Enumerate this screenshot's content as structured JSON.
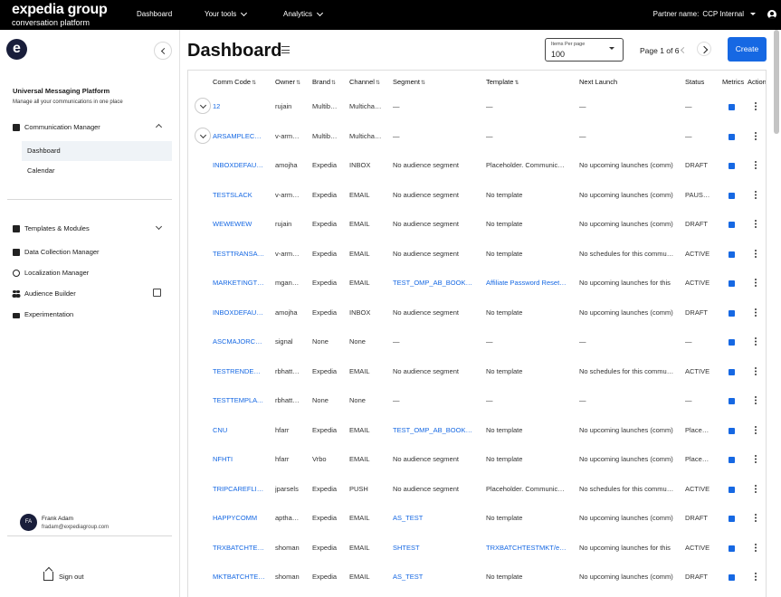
{
  "topbar": {
    "brand": "expedia group",
    "brand_sub": "conversation platform",
    "nav": [
      "Dashboard",
      "Your tools",
      "Analytics"
    ],
    "partner_label": "Partner name:",
    "partner_value": "CCP Internal"
  },
  "sidebar": {
    "logo_letter": "e",
    "title": "Universal Messaging Platform",
    "subtitle": "Manage all your communications in one place",
    "comm_manager": "Communication Manager",
    "sub_items": [
      "Dashboard",
      "Calendar"
    ],
    "templates": "Templates & Modules",
    "data_collection": "Data Collection Manager",
    "localization": "Localization Manager",
    "audience": "Audience Builder",
    "experimentation": "Experimentation",
    "user_initials": "FA",
    "user_name": "Frank Adam",
    "user_email": "fradam@expediagroup.com",
    "sign_out": "Sign out"
  },
  "main": {
    "title": "Dashboard",
    "items_per_page_label": "Items Per page",
    "items_per_page_value": "100",
    "page_info": "Page 1 of 6",
    "create_label": "Create"
  },
  "table": {
    "headers": {
      "code": "Comm Code",
      "owner": "Owner",
      "brand": "Brand",
      "channel": "Channel",
      "segment": "Segment",
      "template": "Template",
      "next": "Next Launch",
      "status": "Status",
      "metrics": "Metrics",
      "action": "Action"
    },
    "rows": [
      {
        "code": "12",
        "owner": "rujain",
        "brand": "Multibrand",
        "channel": "Multichannel",
        "segment": "—",
        "template": "—",
        "next": "—",
        "status": "—"
      },
      {
        "code": "ARSAMPLECOMM",
        "owner": "v-armaan",
        "brand": "Multibrand",
        "channel": "Multichannel",
        "segment": "—",
        "template": "—",
        "next": "—",
        "status": "—"
      },
      {
        "code": "INBOXDEFAULTCOMM",
        "owner": "amojha",
        "brand": "Expedia",
        "channel": "INBOX",
        "segment": "No audience segment",
        "template": "Placeholder. Communication",
        "next": "No upcoming launches (comm)",
        "status": "DRAFT"
      },
      {
        "code": "TESTSLACK",
        "owner": "v-armaan",
        "brand": "Expedia",
        "channel": "EMAIL",
        "segment": "No audience segment",
        "template": "No template",
        "next": "No upcoming launches (comm)",
        "status": "PAUSED"
      },
      {
        "code": "WEWEWEW",
        "owner": "rujain",
        "brand": "Expedia",
        "channel": "EMAIL",
        "segment": "No audience segment",
        "template": "No template",
        "next": "No upcoming launches (comm)",
        "status": "DRAFT"
      },
      {
        "code": "TESTTRANSACTIONAL",
        "owner": "v-armaan",
        "brand": "Expedia",
        "channel": "EMAIL",
        "segment": "No audience segment",
        "template": "No template",
        "next": "No schedules for this communication",
        "status": "ACTIVE"
      },
      {
        "code": "MARKETINGTEST",
        "owner": "mganesh",
        "brand": "Expedia",
        "channel": "EMAIL",
        "segment": "TEST_OMP_AB_BOOKING",
        "template": "Affiliate Password Reset Template",
        "next": "No upcoming launches for this",
        "status": "ACTIVE"
      },
      {
        "code": "INBOXDEFAULT1",
        "owner": "amojha",
        "brand": "Expedia",
        "channel": "INBOX",
        "segment": "No audience segment",
        "template": "No template",
        "next": "No upcoming launches (comm)",
        "status": "DRAFT"
      },
      {
        "code": "ASCMAJORCTEST",
        "owner": "signal",
        "brand": "None",
        "channel": "None",
        "segment": "—",
        "template": "—",
        "next": "—",
        "status": "—"
      },
      {
        "code": "TESTRENDERCOMM",
        "owner": "rbhattach",
        "brand": "Expedia",
        "channel": "EMAIL",
        "segment": "No audience segment",
        "template": "No template",
        "next": "No schedules for this communication",
        "status": "ACTIVE"
      },
      {
        "code": "TESTTEMPLATECOMM",
        "owner": "rbhattach",
        "brand": "None",
        "channel": "None",
        "segment": "—",
        "template": "—",
        "next": "—",
        "status": "—"
      },
      {
        "code": "CNU",
        "owner": "hfarr",
        "brand": "Expedia",
        "channel": "EMAIL",
        "segment": "TEST_OMP_AB_BOOKING",
        "template": "No template",
        "next": "No upcoming launches (comm)",
        "status": "Placeholder"
      },
      {
        "code": "NFHTI",
        "owner": "hfarr",
        "brand": "Vrbo",
        "channel": "EMAIL",
        "segment": "No audience segment",
        "template": "No template",
        "next": "No upcoming launches (comm)",
        "status": "Placeholder"
      },
      {
        "code": "TRIPCAREFLIGHT",
        "owner": "jparsels",
        "brand": "Expedia",
        "channel": "PUSH",
        "segment": "No audience segment",
        "template": "Placeholder. Communication",
        "next": "No schedules for this communication",
        "status": "ACTIVE"
      },
      {
        "code": "HAPPYCOMM",
        "owner": "apthakur",
        "brand": "Expedia",
        "channel": "EMAIL",
        "segment": "AS_TEST",
        "template": "No template",
        "next": "No upcoming launches (comm)",
        "status": "DRAFT"
      },
      {
        "code": "TRXBATCHTEST",
        "owner": "shoman",
        "brand": "Expedia",
        "channel": "EMAIL",
        "segment": "SHTEST",
        "template": "TRXBATCHTESTMKT/email",
        "next": "No upcoming launches for this",
        "status": "ACTIVE"
      },
      {
        "code": "MKTBATCHTEST",
        "owner": "shoman",
        "brand": "Expedia",
        "channel": "EMAIL",
        "segment": "AS_TEST",
        "template": "No template",
        "next": "No upcoming launches (comm)",
        "status": "DRAFT"
      }
    ]
  }
}
